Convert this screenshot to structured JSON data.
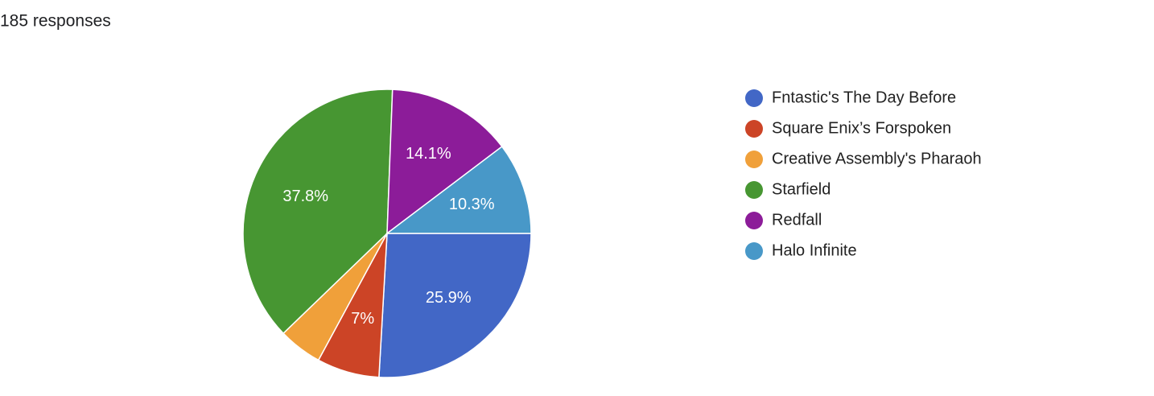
{
  "chart_data": {
    "type": "pie",
    "title": "185 responses",
    "categories": [
      "Fntastic's The Day Before",
      "Square Enix’s Forspoken",
      "Creative Assembly's Pharaoh",
      "Starfield",
      "Redfall",
      "Halo Infinite"
    ],
    "values": [
      25.9,
      7,
      4.9,
      37.8,
      14.1,
      10.3
    ],
    "value_labels": [
      "25.9%",
      "7%",
      null,
      "37.8%",
      "14.1%",
      "10.3%"
    ],
    "colors": [
      "#4267c6",
      "#cc4426",
      "#f0a03a",
      "#479632",
      "#8c1c99",
      "#4898c8"
    ],
    "legend": "right"
  }
}
